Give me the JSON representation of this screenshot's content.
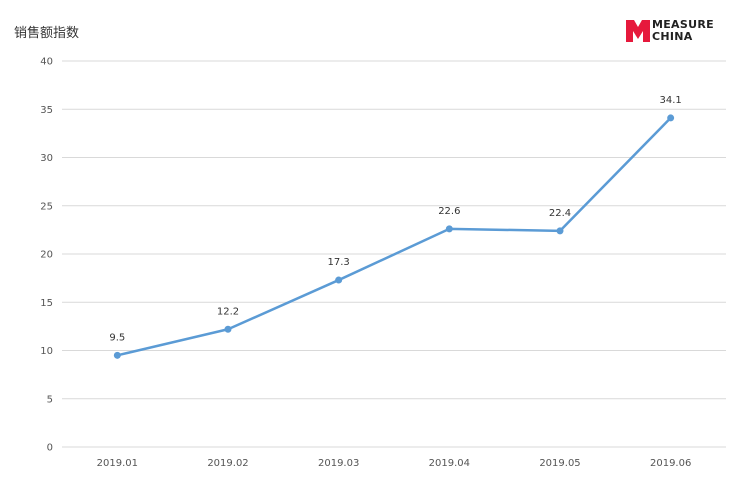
{
  "logo": {
    "line1": "MEASURE",
    "line2": "CHINA",
    "color": "#e6193c"
  },
  "chart_data": {
    "type": "line",
    "title": "销售额指数",
    "categories": [
      "2019.01",
      "2019.02",
      "2019.03",
      "2019.04",
      "2019.05",
      "2019.06"
    ],
    "values": [
      9.5,
      12.2,
      17.3,
      22.6,
      22.4,
      34.1
    ],
    "data_labels": [
      "9.5",
      "12.2",
      "17.3",
      "22.6",
      "22.4",
      "34.1"
    ],
    "y_ticks": [
      "0",
      "5",
      "10",
      "15",
      "20",
      "25",
      "30",
      "35",
      "40"
    ],
    "ylim": [
      0,
      40
    ],
    "grid": true,
    "legend": "none",
    "line_color": "#5b9bd5",
    "grid_color": "#d9d9d9"
  }
}
